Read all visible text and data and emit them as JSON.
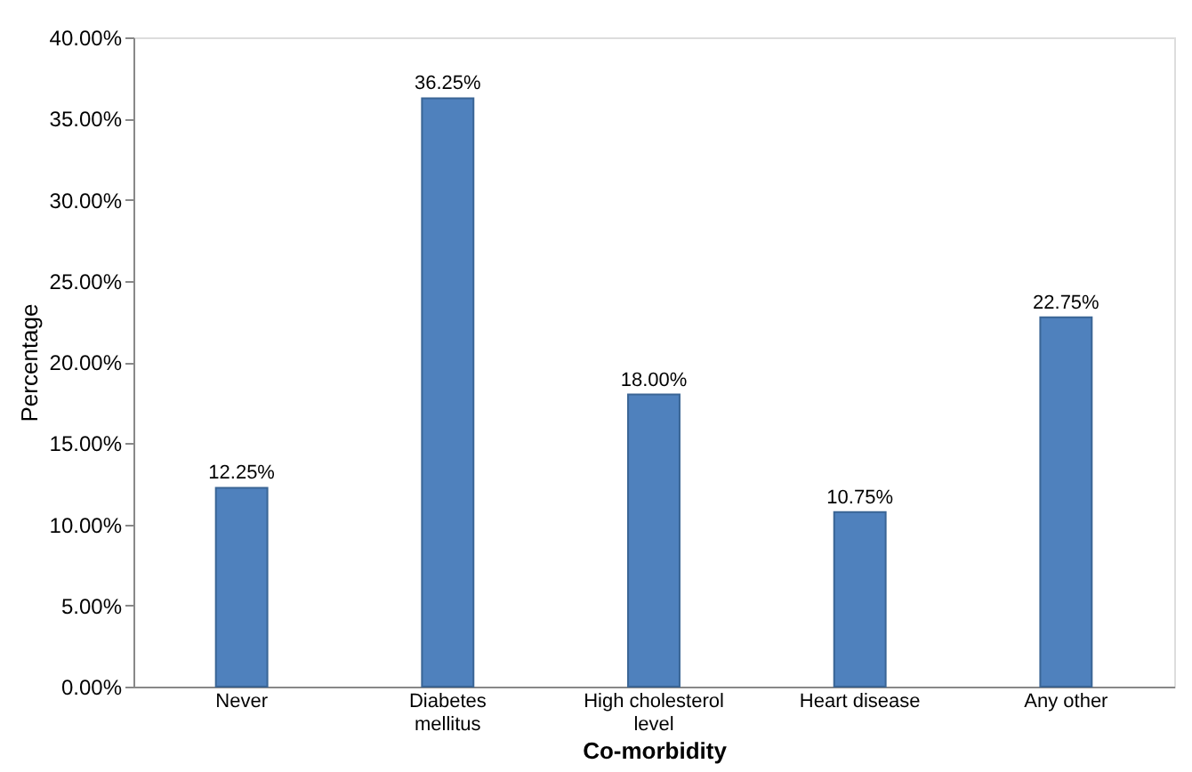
{
  "chart_data": {
    "type": "bar",
    "xlabel": "Co-morbidity",
    "ylabel": "Percentage",
    "categories": [
      "Never",
      "Diabetes mellitus",
      "High cholesterol level",
      "Heart disease",
      "Any other"
    ],
    "values": [
      12.25,
      36.25,
      18.0,
      10.75,
      22.75
    ],
    "value_labels": [
      "12.25%",
      "36.25%",
      "18.00%",
      "10.75%",
      "22.75%"
    ],
    "color": "#4f81bd",
    "ylim": [
      0,
      40
    ],
    "yticks": [
      {
        "value": 0,
        "label": "0.00%"
      },
      {
        "value": 5,
        "label": "5.00%"
      },
      {
        "value": 10,
        "label": "10.00%"
      },
      {
        "value": 15,
        "label": "15.00%"
      },
      {
        "value": 20,
        "label": "20.00%"
      },
      {
        "value": 25,
        "label": "25.00%"
      },
      {
        "value": 30,
        "label": "30.00%"
      },
      {
        "value": 35,
        "label": "35.00%"
      },
      {
        "value": 40,
        "label": "40.00%"
      }
    ],
    "grid": false
  }
}
